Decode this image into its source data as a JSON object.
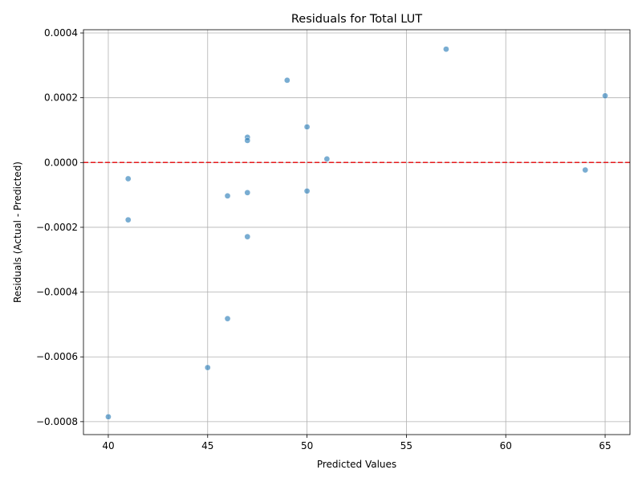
{
  "chart_data": {
    "type": "scatter",
    "title": "Residuals for Total LUT",
    "xlabel": "Predicted Values",
    "ylabel": "Residuals (Actual - Predicted)",
    "xlim": [
      38.75,
      66.25
    ],
    "ylim": [
      -0.00084,
      0.00041
    ],
    "xticks": [
      40,
      45,
      50,
      55,
      60,
      65
    ],
    "yticks": [
      -0.0008,
      -0.0006,
      -0.0004,
      -0.0002,
      0.0,
      0.0002,
      0.0004
    ],
    "ytick_labels": [
      "−0.0008",
      "−0.0006",
      "−0.0004",
      "−0.0002",
      "0.0000",
      "0.0002",
      "0.0004"
    ],
    "grid": true,
    "reference_line": {
      "y": 0,
      "color": "#e41a1c",
      "style": "dashed"
    },
    "point_color": "#1f77b4",
    "points": [
      {
        "x": 40,
        "y": -0.000785
      },
      {
        "x": 41,
        "y": -5e-05
      },
      {
        "x": 41,
        "y": -0.000177
      },
      {
        "x": 45,
        "y": -0.000633
      },
      {
        "x": 46,
        "y": -0.000103
      },
      {
        "x": 46,
        "y": -0.000482
      },
      {
        "x": 47,
        "y": 7.8e-05
      },
      {
        "x": 47,
        "y": 6.8e-05
      },
      {
        "x": 47,
        "y": -9.3e-05
      },
      {
        "x": 47,
        "y": -0.000229
      },
      {
        "x": 49,
        "y": 0.000254
      },
      {
        "x": 50,
        "y": 0.00011
      },
      {
        "x": 50,
        "y": -8.8e-05
      },
      {
        "x": 51,
        "y": 1.1e-05
      },
      {
        "x": 57,
        "y": 0.00035
      },
      {
        "x": 64,
        "y": -2.3e-05
      },
      {
        "x": 65,
        "y": 0.000206
      }
    ]
  }
}
